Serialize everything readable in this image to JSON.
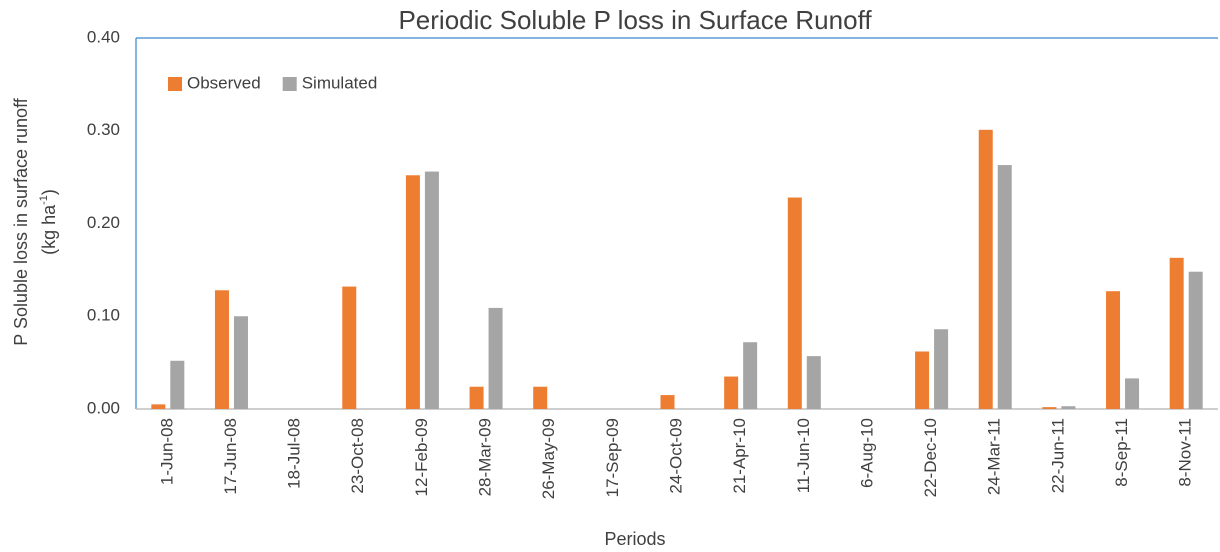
{
  "chart_data": {
    "type": "bar",
    "title": "Periodic Soluble P loss in Surface Runoff",
    "x_label": "Periods",
    "y_label": "P Soluble loss in surface runoff",
    "y_label_unit": {
      "open": "(kg ha",
      "sup": "-1",
      "close": ")"
    },
    "categories": [
      "1-Jun-08",
      "17-Jun-08",
      "18-Jul-08",
      "23-Oct-08",
      "12-Feb-09",
      "28-Mar-09",
      "26-May-09",
      "17-Sep-09",
      "24-Oct-09",
      "21-Apr-10",
      "11-Jun-10",
      "6-Aug-10",
      "22-Dec-10",
      "24-Mar-11",
      "22-Jun-11",
      "8-Sep-11",
      "8-Nov-11"
    ],
    "series": [
      {
        "name": "Observed",
        "color": "#ed7d31",
        "values": [
          0.005,
          0.128,
          0,
          0.132,
          0.252,
          0.024,
          0.024,
          0,
          0.015,
          0.035,
          0.228,
          0,
          0.062,
          0.301,
          0.002,
          0.127,
          0.163
        ]
      },
      {
        "name": "Simulated",
        "color": "#a5a5a5",
        "values": [
          0.052,
          0.1,
          0,
          0,
          0.256,
          0.109,
          0,
          0,
          0,
          0.072,
          0.057,
          0,
          0.086,
          0.263,
          0.003,
          0.033,
          0.148
        ]
      }
    ],
    "ylim": [
      0,
      0.4
    ],
    "yticks": [
      {
        "value": 0,
        "label": "0.00"
      },
      {
        "value": 0.1,
        "label": "0.10"
      },
      {
        "value": 0.2,
        "label": "0.20"
      },
      {
        "value": 0.3,
        "label": "0.30"
      },
      {
        "value": 0.4,
        "label": "0.40"
      }
    ],
    "legend": "top-left",
    "grid": false
  }
}
